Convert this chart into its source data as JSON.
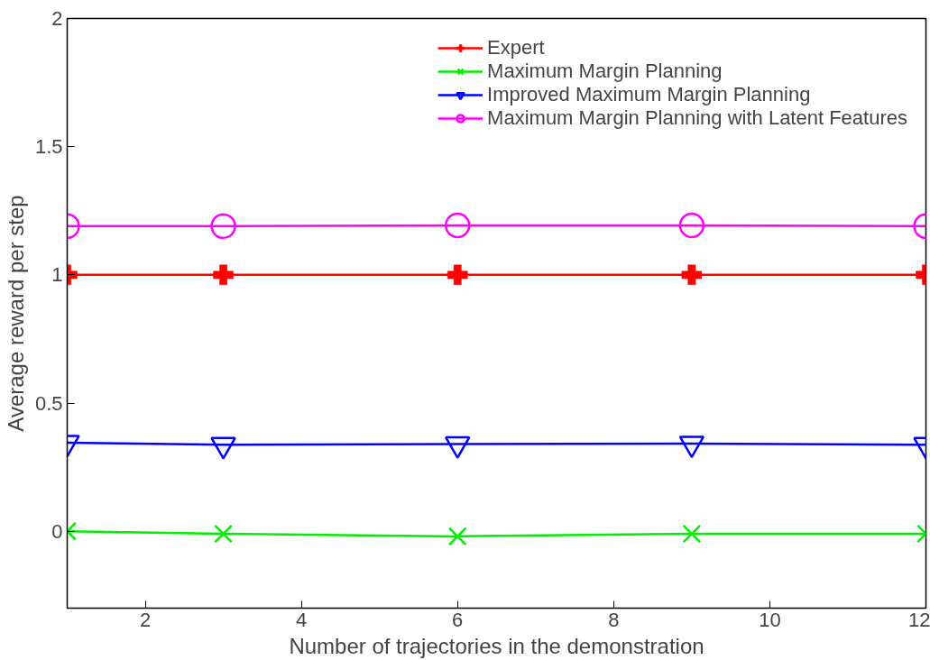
{
  "chart_data": {
    "type": "line",
    "xlabel": "Number of trajectories in the demonstration",
    "ylabel": "Average reward per step",
    "x": [
      1,
      3,
      6,
      9,
      12
    ],
    "series": [
      {
        "name": "Expert",
        "color": "#ff0000",
        "marker": "cross",
        "values": [
          1,
          1,
          1,
          1,
          1
        ]
      },
      {
        "name": "Maximum Margin Planning",
        "color": "#00ee00",
        "marker": "x",
        "values": [
          0,
          -0.01,
          -0.02,
          -0.01,
          -0.01
        ]
      },
      {
        "name": "Improved Maximum Margin Planning",
        "color": "#0000ff",
        "marker": "triangle",
        "values": [
          0.345,
          0.337,
          0.34,
          0.342,
          0.337
        ]
      },
      {
        "name": "Maximum Margin Planning with Latent Features",
        "color": "#ff00ff",
        "marker": "circle",
        "values": [
          1.19,
          1.19,
          1.193,
          1.193,
          1.19
        ]
      }
    ],
    "xlim": [
      1,
      12
    ],
    "xticks": [
      2,
      4,
      6,
      8,
      10,
      12
    ],
    "ylim": [
      -0.3,
      2
    ],
    "yticks": [
      0,
      0.5,
      1,
      1.5,
      2
    ],
    "grid": false,
    "legend": "top right",
    "line_style": "solid"
  }
}
